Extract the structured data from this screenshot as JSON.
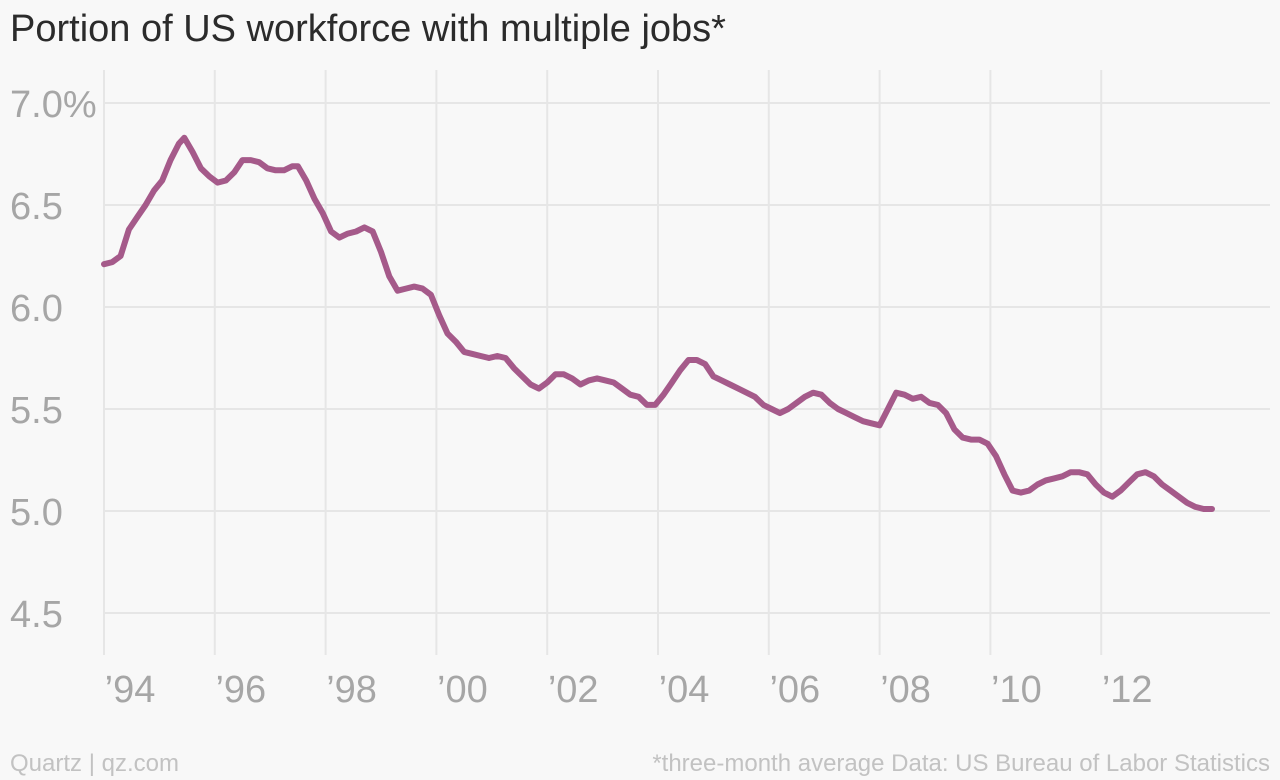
{
  "footer": {
    "source_left": "Quartz | qz.com",
    "note_right": "*three-month average Data: US Bureau of Labor Statistics"
  },
  "colors": {
    "line": "#a55a8a",
    "grid": "#e6e6e6",
    "tick_text": "#a6a6a6"
  },
  "chart_data": {
    "type": "line",
    "title": "Portion of US workforce with multiple jobs*",
    "xlabel": "",
    "ylabel": "",
    "xlim": [
      1994,
      2014
    ],
    "ylim": [
      4.5,
      7.0
    ],
    "yticks": [
      4.5,
      5.0,
      5.5,
      6.0,
      6.5,
      7.0
    ],
    "ytick_labels": [
      "4.5",
      "5.0",
      "5.5",
      "6.0",
      "6.5",
      "7.0%"
    ],
    "xticks": [
      1994,
      1996,
      1998,
      2000,
      2002,
      2004,
      2006,
      2008,
      2010,
      2012
    ],
    "xtick_labels": [
      "’94",
      "’96",
      "’98",
      "’00",
      "’02",
      "’04",
      "’06",
      "’08",
      "’10",
      "’12"
    ],
    "grid": true,
    "series": [
      {
        "x": [
          1994.0,
          1994.15,
          1994.3,
          1994.45,
          1994.6,
          1994.75,
          1994.9,
          1995.05,
          1995.2,
          1995.35,
          1995.45,
          1995.6,
          1995.75,
          1995.9,
          1996.05,
          1996.2,
          1996.35,
          1996.5,
          1996.65,
          1996.8,
          1996.95,
          1997.1,
          1997.25,
          1997.4,
          1997.5,
          1997.65,
          1997.8,
          1997.95,
          1998.1,
          1998.25,
          1998.4,
          1998.55,
          1998.7,
          1998.85,
          1999.0,
          1999.15,
          1999.3,
          1999.45,
          1999.6,
          1999.75,
          1999.9,
          2000.05,
          2000.2,
          2000.35,
          2000.5,
          2000.65,
          2000.8,
          2000.95,
          2001.1,
          2001.25,
          2001.4,
          2001.55,
          2001.7,
          2001.85,
          2002.0,
          2002.15,
          2002.3,
          2002.45,
          2002.6,
          2002.75,
          2002.9,
          2003.05,
          2003.2,
          2003.35,
          2003.5,
          2003.65,
          2003.8,
          2003.95,
          2004.1,
          2004.25,
          2004.4,
          2004.55,
          2004.7,
          2004.85,
          2005.0,
          2005.15,
          2005.3,
          2005.45,
          2005.6,
          2005.75,
          2005.9,
          2006.05,
          2006.2,
          2006.35,
          2006.5,
          2006.65,
          2006.8,
          2006.95,
          2007.1,
          2007.25,
          2007.4,
          2007.55,
          2007.7,
          2007.85,
          2008.0,
          2008.15,
          2008.3,
          2008.45,
          2008.6,
          2008.75,
          2008.9,
          2009.05,
          2009.2,
          2009.35,
          2009.5,
          2009.65,
          2009.8,
          2009.95,
          2010.1,
          2010.25,
          2010.4,
          2010.55,
          2010.7,
          2010.85,
          2011.0,
          2011.15,
          2011.3,
          2011.45,
          2011.6,
          2011.75,
          2011.9,
          2012.05,
          2012.2,
          2012.35,
          2012.5,
          2012.65,
          2012.8,
          2012.95,
          2013.1,
          2013.25,
          2013.4,
          2013.55,
          2013.7,
          2013.85,
          2014.0
        ],
        "y": [
          6.21,
          6.22,
          6.25,
          6.38,
          6.44,
          6.5,
          6.57,
          6.62,
          6.72,
          6.8,
          6.83,
          6.76,
          6.68,
          6.64,
          6.61,
          6.62,
          6.66,
          6.72,
          6.72,
          6.71,
          6.68,
          6.67,
          6.67,
          6.69,
          6.69,
          6.62,
          6.53,
          6.46,
          6.37,
          6.34,
          6.36,
          6.37,
          6.39,
          6.37,
          6.27,
          6.15,
          6.08,
          6.09,
          6.1,
          6.09,
          6.06,
          5.96,
          5.87,
          5.83,
          5.78,
          5.77,
          5.76,
          5.75,
          5.76,
          5.75,
          5.7,
          5.66,
          5.62,
          5.6,
          5.63,
          5.67,
          5.67,
          5.65,
          5.62,
          5.64,
          5.65,
          5.64,
          5.63,
          5.6,
          5.57,
          5.56,
          5.52,
          5.52,
          5.57,
          5.63,
          5.69,
          5.74,
          5.74,
          5.72,
          5.66,
          5.64,
          5.62,
          5.6,
          5.58,
          5.56,
          5.52,
          5.5,
          5.48,
          5.5,
          5.53,
          5.56,
          5.58,
          5.57,
          5.53,
          5.5,
          5.48,
          5.46,
          5.44,
          5.43,
          5.42,
          5.5,
          5.58,
          5.57,
          5.55,
          5.56,
          5.53,
          5.52,
          5.48,
          5.4,
          5.36,
          5.35,
          5.35,
          5.33,
          5.27,
          5.18,
          5.1,
          5.09,
          5.1,
          5.13,
          5.15,
          5.16,
          5.17,
          5.19,
          5.19,
          5.18,
          5.13,
          5.09,
          5.07,
          5.1,
          5.14,
          5.18,
          5.19,
          5.17,
          5.13,
          5.1,
          5.07,
          5.04,
          5.02,
          5.01,
          5.01
        ]
      }
    ]
  }
}
